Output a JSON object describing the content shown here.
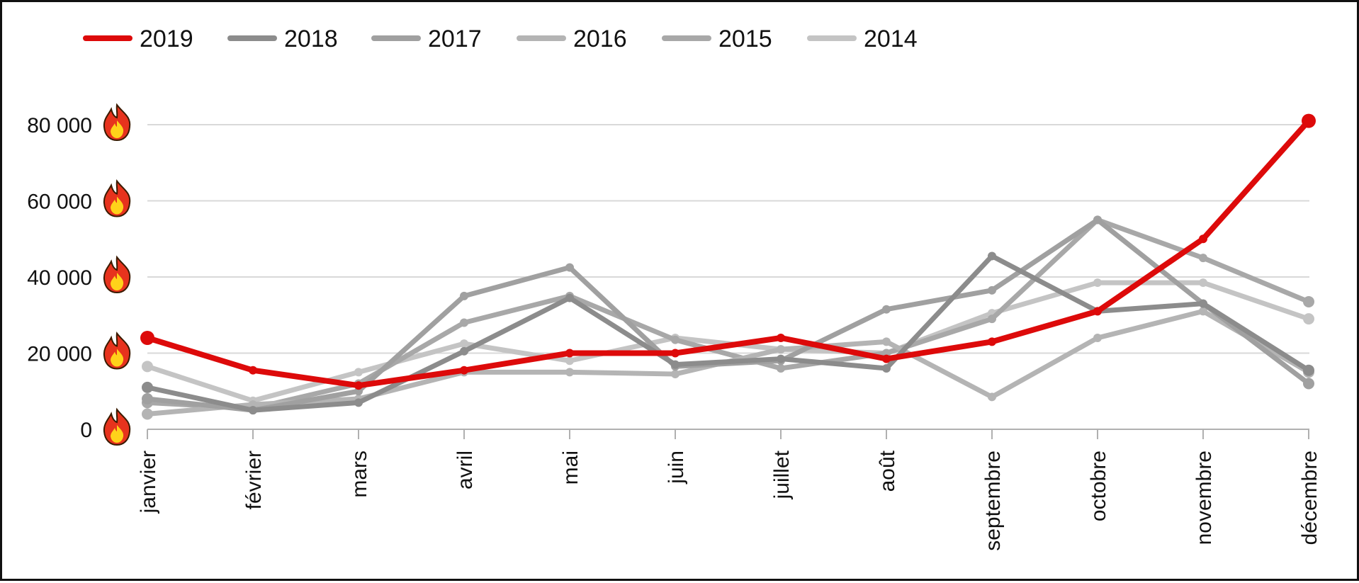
{
  "chart_data": {
    "type": "line",
    "categories": [
      "janvier",
      "février",
      "mars",
      "avril",
      "mai",
      "juin",
      "juillet",
      "août",
      "septembre",
      "octobre",
      "novembre",
      "décembre"
    ],
    "ylim": [
      0,
      90000
    ],
    "yticks": [
      0,
      20000,
      40000,
      60000,
      80000
    ],
    "ytick_labels": [
      "0",
      "20 000",
      "40 000",
      "60 000",
      "80 000"
    ],
    "ytick_icon": "fire-emoji-icon",
    "grid": true,
    "legend": "top-left",
    "series": [
      {
        "name": "2019",
        "color": "#dd0a0a",
        "values": [
          24000,
          15500,
          11500,
          15500,
          20000,
          20000,
          24000,
          18500,
          23000,
          31000,
          50000,
          81000
        ]
      },
      {
        "name": "2018",
        "color": "#8c8c8c",
        "values": [
          11000,
          5000,
          7000,
          20500,
          34500,
          17000,
          18500,
          16000,
          45500,
          31000,
          33000,
          15500
        ]
      },
      {
        "name": "2017",
        "color": "#a0a0a0",
        "values": [
          8000,
          5000,
          10000,
          35000,
          42500,
          16500,
          18000,
          31500,
          36500,
          55000,
          33000,
          12000
        ]
      },
      {
        "name": "2016",
        "color": "#b4b4b4",
        "values": [
          4000,
          6500,
          8000,
          15000,
          15000,
          14500,
          21000,
          23000,
          8500,
          24000,
          31000,
          15000
        ]
      },
      {
        "name": "2015",
        "color": "#a8a8a8",
        "values": [
          7000,
          5500,
          12000,
          28000,
          35000,
          23500,
          16000,
          20000,
          29000,
          55000,
          45000,
          33500
        ]
      },
      {
        "name": "2014",
        "color": "#c4c4c4",
        "values": [
          16500,
          7500,
          15000,
          22500,
          18000,
          24000,
          21000,
          20000,
          30500,
          38500,
          38500,
          29000
        ]
      }
    ]
  }
}
